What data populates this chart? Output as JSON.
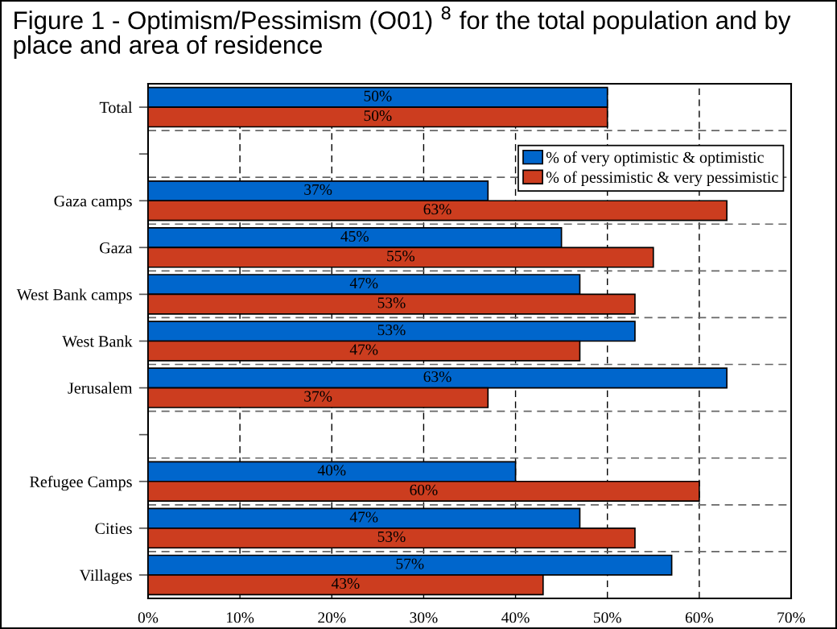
{
  "chart_data": {
    "type": "bar",
    "orientation": "horizontal",
    "title": "Figure 1 - Optimism/Pessimism (O01) $^{8}$ for the total population and by place and area of residence",
    "categories": [
      "Total",
      null,
      "Gaza camps",
      "Gaza",
      "West Bank camps",
      "West Bank",
      "Jerusalem",
      null,
      "Refugee Camps",
      "Cities",
      "Villages"
    ],
    "series": [
      {
        "name": "% of very optimistic & optimistic",
        "color": "#0066cc",
        "values": [
          50,
          null,
          37,
          45,
          47,
          53,
          63,
          null,
          40,
          47,
          57
        ],
        "value_labels": [
          "50%",
          null,
          "37%",
          "45%",
          "47%",
          "53%",
          "63%",
          null,
          "40%",
          "47%",
          "57%"
        ]
      },
      {
        "name": "% of pessimistic & very pessimistic",
        "color": "#cc3d1f",
        "values": [
          50,
          null,
          63,
          55,
          53,
          47,
          37,
          null,
          60,
          53,
          43
        ],
        "value_labels": [
          "50%",
          null,
          "63%",
          "55%",
          "53%",
          "47%",
          "37%",
          null,
          "60%",
          "53%",
          "43%"
        ]
      }
    ],
    "xlim": [
      0,
      70
    ],
    "xticks": [
      {
        "value": 0,
        "label": "0%"
      },
      {
        "value": 10,
        "label": "10%"
      },
      {
        "value": 20,
        "label": "20%"
      },
      {
        "value": 30,
        "label": "30%"
      },
      {
        "value": 40,
        "label": "40%"
      },
      {
        "value": 50,
        "label": "50%"
      },
      {
        "value": 60,
        "label": "60%"
      },
      {
        "value": 70,
        "label": "70%"
      }
    ],
    "grid": true,
    "legend": "top right"
  }
}
